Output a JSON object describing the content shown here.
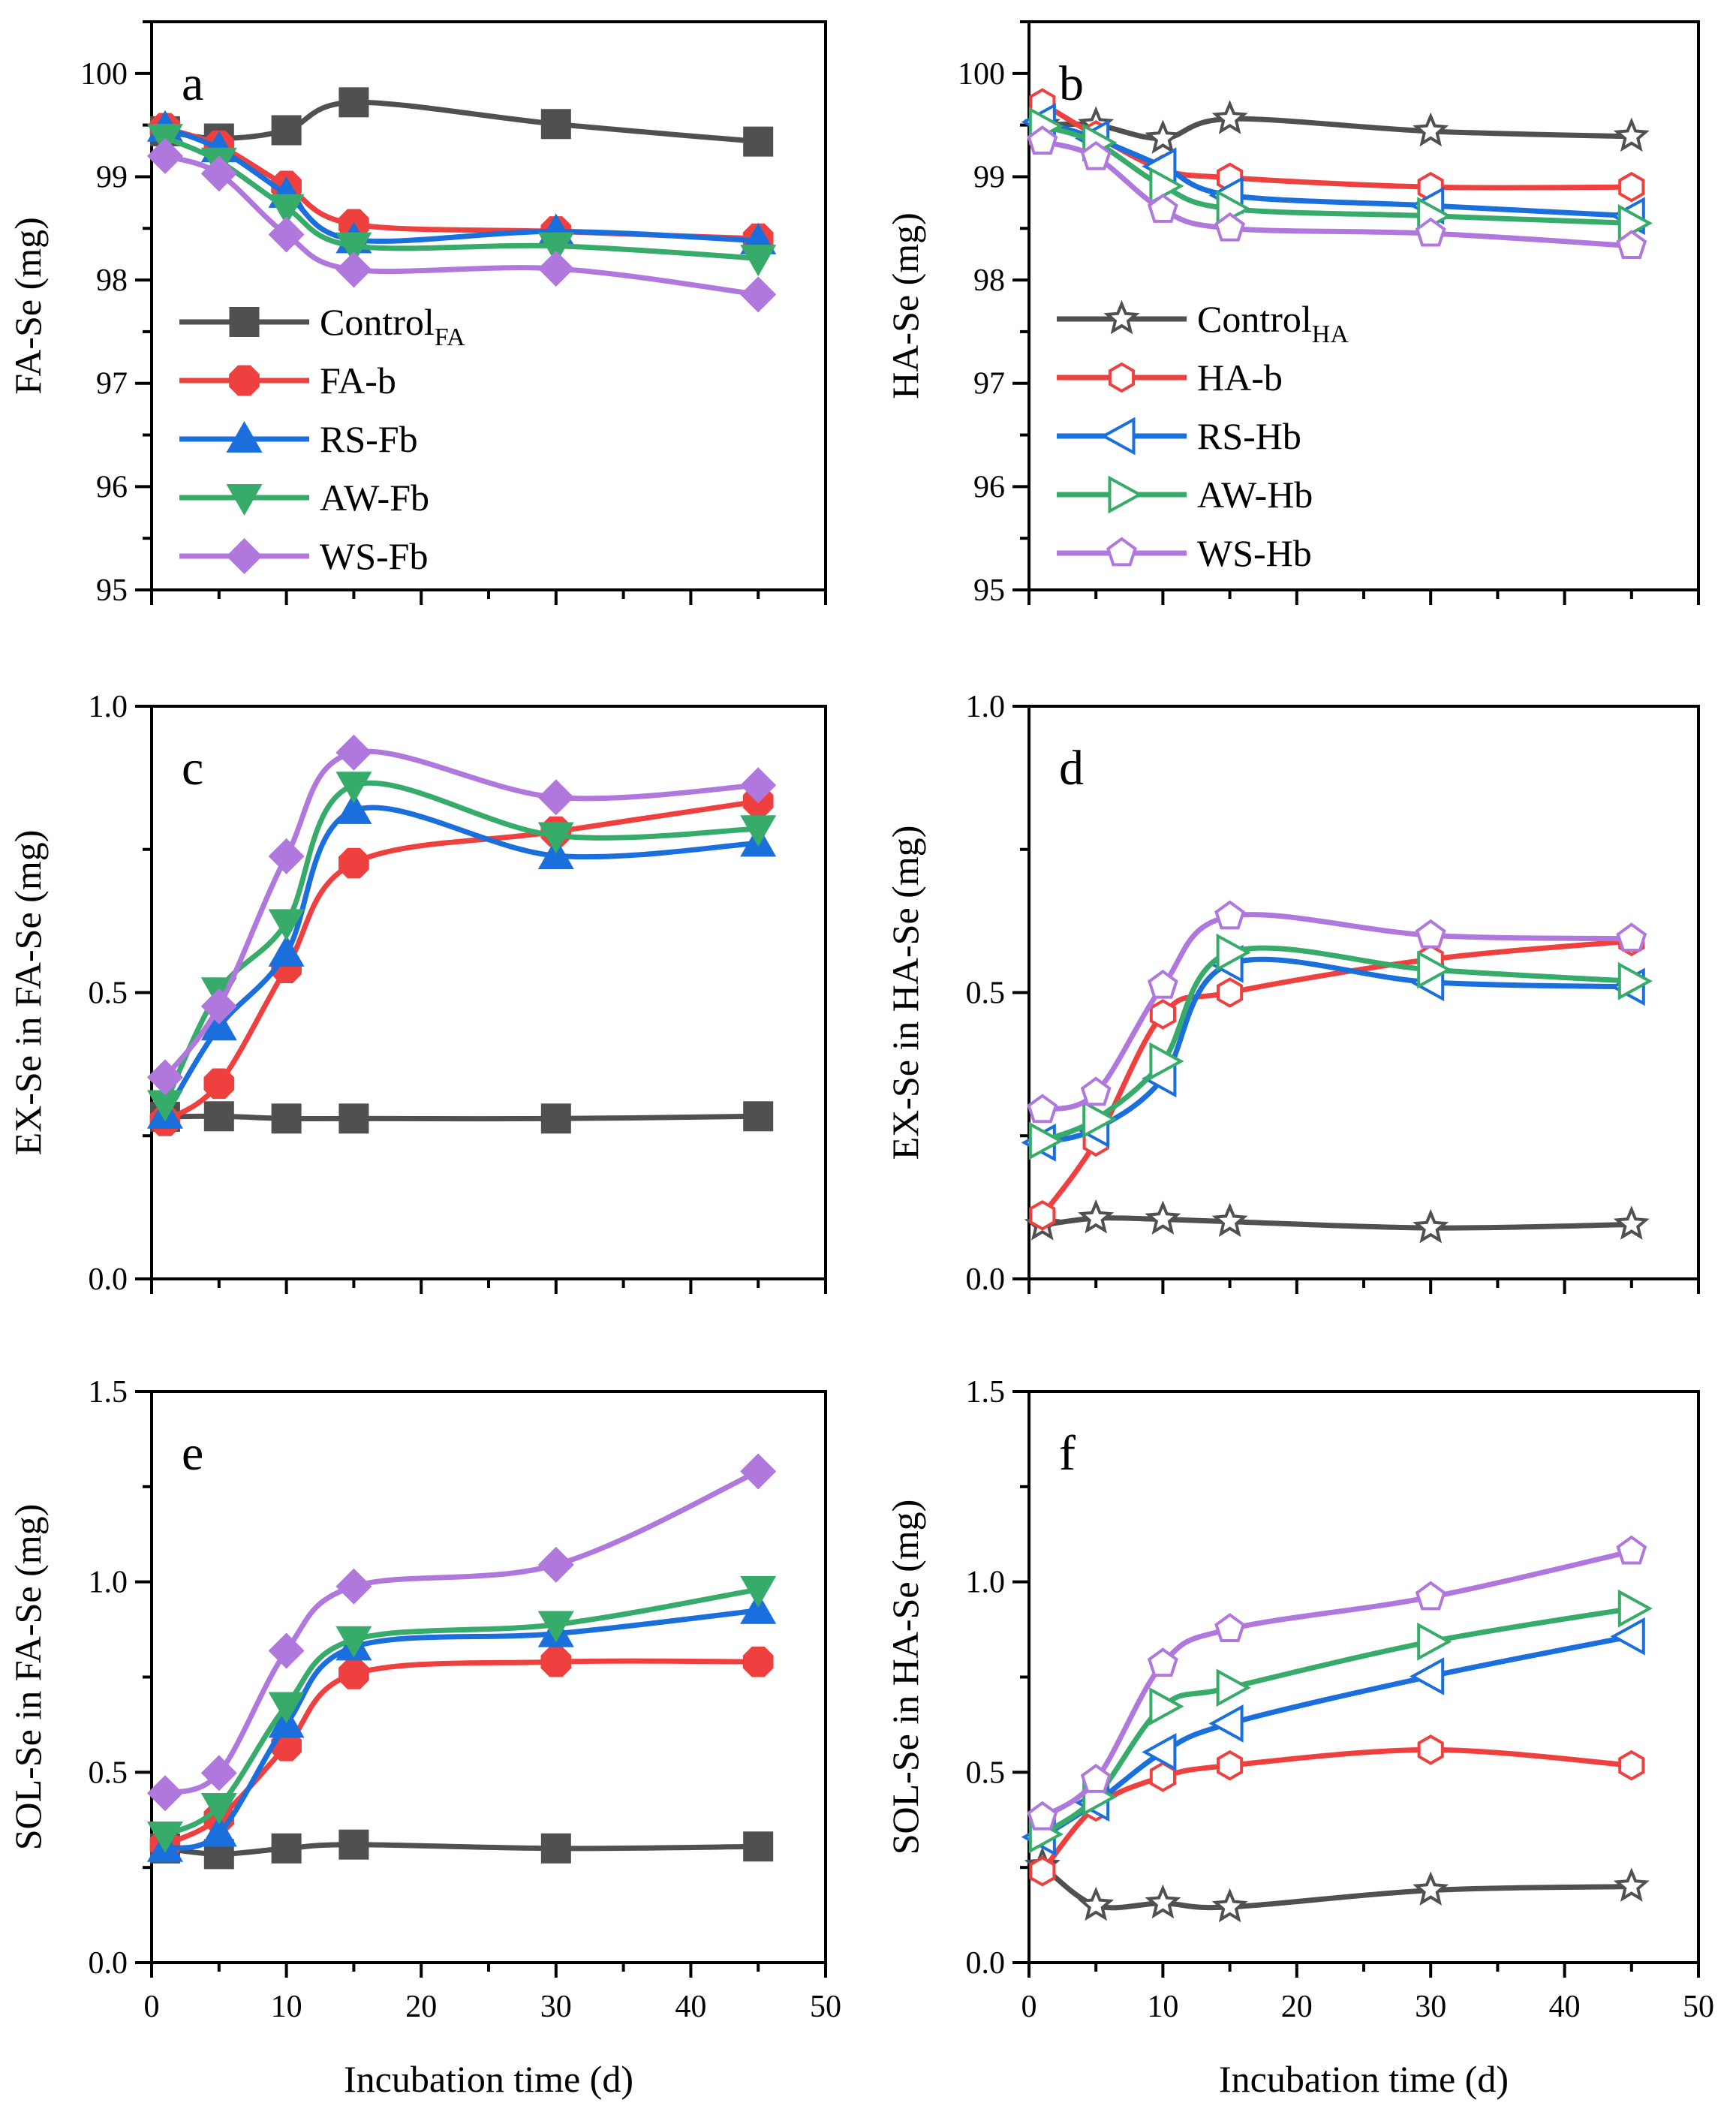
{
  "figure": {
    "colors": {
      "control": "#505050",
      "b": "#ef4040",
      "RS": "#1a6fdc",
      "AW": "#36ab6a",
      "WS": "#b077dc",
      "axis": "#000000"
    }
  },
  "chart_data": [
    {
      "panel": "a",
      "type": "line",
      "title": "",
      "xlabel": "",
      "ylabel": "FA-Se (mg)",
      "xlim": [
        0,
        50
      ],
      "ylim": [
        95,
        100.5
      ],
      "yticks": [
        "95",
        "96",
        "97",
        "98",
        "99",
        "100"
      ],
      "xticks": [
        "0",
        "10",
        "20",
        "30",
        "40",
        "50"
      ],
      "show_xtick_labels": false,
      "x": [
        1,
        5,
        10,
        15,
        30,
        45
      ],
      "legend": "left-middle",
      "markers": "filled",
      "series": [
        {
          "name": "Control",
          "sub": "FA",
          "key": "control",
          "marker": "square",
          "values": [
            99.44,
            99.37,
            99.45,
            99.72,
            99.51,
            99.34
          ]
        },
        {
          "name": "FA-b",
          "sub": "",
          "key": "b",
          "marker": "circle",
          "values": [
            99.47,
            99.3,
            98.91,
            98.54,
            98.47,
            98.4
          ]
        },
        {
          "name": "RS-Fb",
          "sub": "",
          "key": "RS",
          "marker": "triangle-up",
          "values": [
            99.47,
            99.27,
            98.83,
            98.39,
            98.47,
            98.38
          ]
        },
        {
          "name": "AW-Fb",
          "sub": "",
          "key": "AW",
          "marker": "triangle-down",
          "values": [
            99.38,
            99.15,
            98.7,
            98.33,
            98.33,
            98.21
          ]
        },
        {
          "name": "WS-Fb",
          "sub": "",
          "key": "WS",
          "marker": "diamond",
          "values": [
            99.2,
            99.03,
            98.44,
            98.1,
            98.11,
            97.86
          ]
        }
      ]
    },
    {
      "panel": "b",
      "type": "line",
      "title": "",
      "xlabel": "",
      "ylabel": "HA-Se (mg)",
      "xlim": [
        0,
        50
      ],
      "ylim": [
        95,
        100.5
      ],
      "yticks": [
        "95",
        "96",
        "97",
        "98",
        "99",
        "100"
      ],
      "xticks": [
        "0",
        "10",
        "20",
        "30",
        "40",
        "50"
      ],
      "show_xtick_labels": false,
      "x": [
        1,
        5,
        10,
        15,
        30,
        45
      ],
      "legend": "left-middle",
      "markers": "open",
      "series": [
        {
          "name": "Control",
          "sub": "HA",
          "key": "control",
          "marker": "star",
          "values": [
            99.5,
            99.5,
            99.37,
            99.56,
            99.44,
            99.39
          ]
        },
        {
          "name": "HA-b",
          "sub": "",
          "key": "b",
          "marker": "hexagon",
          "values": [
            99.71,
            99.4,
            99.07,
            98.99,
            98.9,
            98.9
          ]
        },
        {
          "name": "RS-Hb",
          "sub": "",
          "key": "RS",
          "marker": "triangle-left",
          "values": [
            99.53,
            99.37,
            99.1,
            98.82,
            98.72,
            98.62
          ]
        },
        {
          "name": "AW-Hb",
          "sub": "",
          "key": "AW",
          "marker": "triangle-right",
          "values": [
            99.49,
            99.33,
            98.91,
            98.69,
            98.62,
            98.55
          ]
        },
        {
          "name": "WS-Hb",
          "sub": "",
          "key": "WS",
          "marker": "pentagon",
          "values": [
            99.34,
            99.19,
            98.68,
            98.5,
            98.45,
            98.33
          ]
        }
      ]
    },
    {
      "panel": "c",
      "type": "line",
      "title": "",
      "xlabel": "",
      "ylabel": "EX-Se in FA-Se (mg)",
      "xlim": [
        0,
        50
      ],
      "ylim": [
        0,
        1.0
      ],
      "yticks": [
        "0.0",
        "0.5",
        "1.0"
      ],
      "xticks": [
        "0",
        "10",
        "20",
        "30",
        "40",
        "50"
      ],
      "show_xtick_labels": false,
      "x": [
        1,
        5,
        10,
        15,
        30,
        45
      ],
      "markers": "filled",
      "series": [
        {
          "name": "Control",
          "sub": "FA",
          "key": "control",
          "marker": "square",
          "values": [
            0.283,
            0.284,
            0.28,
            0.28,
            0.28,
            0.284
          ]
        },
        {
          "name": "FA-b",
          "sub": "",
          "key": "b",
          "marker": "circle",
          "values": [
            0.276,
            0.341,
            0.543,
            0.726,
            0.781,
            0.834
          ]
        },
        {
          "name": "RS-Fb",
          "sub": "",
          "key": "RS",
          "marker": "triangle-up",
          "values": [
            0.286,
            0.44,
            0.569,
            0.818,
            0.739,
            0.761
          ]
        },
        {
          "name": "AW-Fb",
          "sub": "",
          "key": "AW",
          "marker": "triangle-down",
          "values": [
            0.306,
            0.503,
            0.622,
            0.862,
            0.774,
            0.786
          ]
        },
        {
          "name": "WS-Fb",
          "sub": "",
          "key": "WS",
          "marker": "diamond",
          "values": [
            0.352,
            0.476,
            0.738,
            0.919,
            0.841,
            0.862
          ]
        }
      ]
    },
    {
      "panel": "d",
      "type": "line",
      "title": "",
      "xlabel": "",
      "ylabel": "EX-Se in HA-Se (mg)",
      "xlim": [
        0,
        50
      ],
      "ylim": [
        0,
        1.0
      ],
      "yticks": [
        "0.0",
        "0.5",
        "1.0"
      ],
      "xticks": [
        "0",
        "10",
        "20",
        "30",
        "40",
        "50"
      ],
      "show_xtick_labels": false,
      "x": [
        1,
        5,
        10,
        15,
        30,
        45
      ],
      "markers": "open",
      "series": [
        {
          "name": "Control",
          "sub": "HA",
          "key": "control",
          "marker": "star",
          "values": [
            0.094,
            0.106,
            0.104,
            0.1,
            0.089,
            0.095
          ]
        },
        {
          "name": "HA-b",
          "sub": "",
          "key": "b",
          "marker": "hexagon",
          "values": [
            0.111,
            0.24,
            0.462,
            0.5,
            0.558,
            0.59
          ]
        },
        {
          "name": "RS-Hb",
          "sub": "",
          "key": "RS",
          "marker": "triangle-left",
          "values": [
            0.238,
            0.262,
            0.35,
            0.55,
            0.518,
            0.51
          ]
        },
        {
          "name": "AW-Hb",
          "sub": "",
          "key": "AW",
          "marker": "triangle-right",
          "values": [
            0.241,
            0.279,
            0.38,
            0.57,
            0.54,
            0.52
          ]
        },
        {
          "name": "WS-Hb",
          "sub": "",
          "key": "WS",
          "marker": "pentagon",
          "values": [
            0.295,
            0.325,
            0.512,
            0.633,
            0.6,
            0.594
          ]
        }
      ]
    },
    {
      "panel": "e",
      "type": "line",
      "title": "",
      "xlabel": "Incubation time (d)",
      "ylabel": "SOL-Se in FA-Se (mg)",
      "xlim": [
        0,
        50
      ],
      "ylim": [
        0,
        1.5
      ],
      "yticks": [
        "0.0",
        "0.5",
        "1.0",
        "1.5"
      ],
      "xticks": [
        "0",
        "10",
        "20",
        "30",
        "40",
        "50"
      ],
      "show_xtick_labels": true,
      "x": [
        1,
        5,
        10,
        15,
        30,
        45
      ],
      "markers": "filled",
      "series": [
        {
          "name": "Control",
          "sub": "FA",
          "key": "control",
          "marker": "square",
          "values": [
            0.3,
            0.285,
            0.3,
            0.31,
            0.3,
            0.305
          ]
        },
        {
          "name": "FA-b",
          "sub": "",
          "key": "b",
          "marker": "circle",
          "values": [
            0.31,
            0.38,
            0.569,
            0.758,
            0.79,
            0.79
          ]
        },
        {
          "name": "RS-Fb",
          "sub": "",
          "key": "RS",
          "marker": "triangle-up",
          "values": [
            0.3,
            0.34,
            0.626,
            0.829,
            0.864,
            0.925
          ]
        },
        {
          "name": "AW-Fb",
          "sub": "",
          "key": "AW",
          "marker": "triangle-down",
          "values": [
            0.335,
            0.41,
            0.675,
            0.848,
            0.888,
            0.98
          ]
        },
        {
          "name": "WS-Fb",
          "sub": "",
          "key": "WS",
          "marker": "diamond",
          "values": [
            0.445,
            0.498,
            0.819,
            0.988,
            1.045,
            1.29
          ]
        }
      ]
    },
    {
      "panel": "f",
      "type": "line",
      "title": "",
      "xlabel": "Incubation time (d)",
      "ylabel": "SOL-Se in HA-Se (mg)",
      "xlim": [
        0,
        50
      ],
      "ylim": [
        0,
        1.5
      ],
      "yticks": [
        "0.0",
        "0.5",
        "1.0",
        "1.5"
      ],
      "xticks": [
        "0",
        "10",
        "20",
        "30",
        "40",
        "50"
      ],
      "show_xtick_labels": true,
      "x": [
        1,
        5,
        10,
        15,
        30,
        45
      ],
      "markers": "open",
      "series": [
        {
          "name": "Control",
          "sub": "HA",
          "key": "control",
          "marker": "star",
          "values": [
            0.254,
            0.15,
            0.156,
            0.146,
            0.19,
            0.2
          ]
        },
        {
          "name": "HA-b",
          "sub": "",
          "key": "b",
          "marker": "hexagon",
          "values": [
            0.24,
            0.41,
            0.488,
            0.518,
            0.559,
            0.518
          ]
        },
        {
          "name": "RS-Hb",
          "sub": "",
          "key": "RS",
          "marker": "triangle-left",
          "values": [
            0.33,
            0.42,
            0.553,
            0.628,
            0.752,
            0.857
          ]
        },
        {
          "name": "AW-Hb",
          "sub": "",
          "key": "AW",
          "marker": "triangle-right",
          "values": [
            0.337,
            0.435,
            0.673,
            0.722,
            0.843,
            0.93
          ]
        },
        {
          "name": "WS-Hb",
          "sub": "",
          "key": "WS",
          "marker": "pentagon",
          "values": [
            0.382,
            0.48,
            0.785,
            0.876,
            0.96,
            1.08
          ]
        }
      ]
    }
  ]
}
